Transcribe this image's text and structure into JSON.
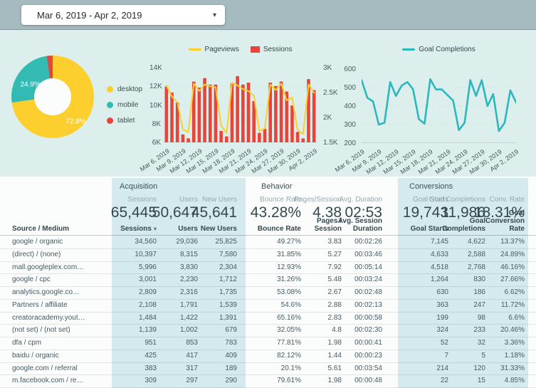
{
  "topbar": {
    "date_range": "Mar 6, 2019 - Apr 2, 2019"
  },
  "icons": {
    "caret_down": "▾",
    "sort_desc": "▾"
  },
  "colors": {
    "topbar_bg": "#A6BBBF",
    "band_bg": "#DCEFEC",
    "panel_bg": "#D5EAEE",
    "desktop": "#FCCF2F",
    "mobile": "#33BBB3",
    "tablet": "#E8443A",
    "pageviews": "#FCCF2F",
    "sessions": "#E8443A",
    "goal": "#2DB6BE"
  },
  "chart_data": [
    {
      "type": "pie",
      "donut": true,
      "legend_position": "right",
      "labels": [
        "desktop",
        "mobile",
        "tablet"
      ],
      "values": [
        72.8,
        24.9,
        2.3
      ],
      "unit": "%",
      "colors": [
        "#FCCF2F",
        "#33BBB3",
        "#E8443A"
      ],
      "shown_labels": [
        "72.8%",
        "24.9%"
      ]
    },
    {
      "type": "combo",
      "x_tick_every": 3,
      "x": [
        "Mar 6, 2019",
        "Mar 7, 2019",
        "Mar 8, 2019",
        "Mar 9, 2019",
        "Mar 10, 2019",
        "Mar 11, 2019",
        "Mar 12, 2019",
        "Mar 13, 2019",
        "Mar 14, 2019",
        "Mar 15, 2019",
        "Mar 16, 2019",
        "Mar 17, 2019",
        "Mar 18, 2019",
        "Mar 19, 2019",
        "Mar 20, 2019",
        "Mar 21, 2019",
        "Mar 22, 2019",
        "Mar 23, 2019",
        "Mar 24, 2019",
        "Mar 25, 2019",
        "Mar 26, 2019",
        "Mar 27, 2019",
        "Mar 28, 2019",
        "Mar 29, 2019",
        "Mar 30, 2019",
        "Mar 31, 2019",
        "Apr 1, 2019",
        "Apr 2, 2019"
      ],
      "left_axis": {
        "min": 6000,
        "max": 14000,
        "ticks": [
          {
            "label": "14K",
            "value": 14000
          },
          {
            "label": "12K",
            "value": 12000
          },
          {
            "label": "10K",
            "value": 10000
          },
          {
            "label": "8K",
            "value": 8000
          },
          {
            "label": "6K",
            "value": 6000
          }
        ]
      },
      "right_axis": {
        "min": 1500,
        "max": 3000,
        "ticks": [
          {
            "label": "3K",
            "value": 3000
          },
          {
            "label": "2.5K",
            "value": 2500
          },
          {
            "label": "2K",
            "value": 2000
          },
          {
            "label": "1.5K",
            "value": 1500
          }
        ]
      },
      "series": [
        {
          "name": "Pageviews",
          "type": "line",
          "axis": "left",
          "color": "#FCCF2F",
          "values": [
            12100,
            10900,
            10300,
            7400,
            7100,
            12300,
            11500,
            12200,
            12000,
            11900,
            7800,
            7000,
            12400,
            12100,
            11700,
            11500,
            11000,
            7200,
            7500,
            12200,
            11600,
            12300,
            10500,
            10800,
            7300,
            6900,
            12200,
            11300
          ]
        },
        {
          "name": "Sessions",
          "type": "bar",
          "axis": "right",
          "color": "#E8443A",
          "values": [
            2620,
            2500,
            2300,
            1660,
            1580,
            2720,
            2600,
            2790,
            2660,
            2660,
            1730,
            1620,
            2680,
            2830,
            2660,
            2700,
            2330,
            1690,
            1770,
            2700,
            2630,
            2720,
            2520,
            2240,
            1710,
            1580,
            2770,
            2550
          ]
        }
      ]
    },
    {
      "type": "line",
      "x_tick_every": 3,
      "x": [
        "Mar 6, 2019",
        "Mar 7, 2019",
        "Mar 8, 2019",
        "Mar 9, 2019",
        "Mar 10, 2019",
        "Mar 11, 2019",
        "Mar 12, 2019",
        "Mar 13, 2019",
        "Mar 14, 2019",
        "Mar 15, 2019",
        "Mar 16, 2019",
        "Mar 17, 2019",
        "Mar 18, 2019",
        "Mar 19, 2019",
        "Mar 20, 2019",
        "Mar 21, 2019",
        "Mar 22, 2019",
        "Mar 23, 2019",
        "Mar 24, 2019",
        "Mar 25, 2019",
        "Mar 26, 2019",
        "Mar 27, 2019",
        "Mar 28, 2019",
        "Mar 29, 2019",
        "Mar 30, 2019",
        "Mar 31, 2019",
        "Apr 1, 2019",
        "Apr 2, 2019"
      ],
      "y_axis": {
        "min": 200,
        "max": 600,
        "ticks": [
          {
            "label": "600",
            "value": 600
          },
          {
            "label": "500",
            "value": 500
          },
          {
            "label": "400",
            "value": 400
          },
          {
            "label": "300",
            "value": 300
          },
          {
            "label": "200",
            "value": 200
          }
        ]
      },
      "series": [
        {
          "name": "Goal Completions",
          "color": "#2DB6BE",
          "values": [
            540,
            445,
            425,
            300,
            310,
            530,
            455,
            510,
            530,
            490,
            330,
            305,
            545,
            490,
            490,
            460,
            430,
            270,
            310,
            540,
            455,
            540,
            400,
            465,
            265,
            310,
            485,
            420
          ]
        }
      ]
    }
  ],
  "scorecards": {
    "acquisition": {
      "title": "Acquisition",
      "metrics": [
        {
          "label": "Sessions",
          "value": "65,445"
        },
        {
          "label": "Users",
          "value": "50,647"
        },
        {
          "label": "New Users",
          "value": "45,641"
        }
      ]
    },
    "behavior": {
      "title": "Behavior",
      "metrics": [
        {
          "label": "Bounce Rate",
          "value": "43.28%"
        },
        {
          "label": "Pages/Session",
          "value": "4.38"
        },
        {
          "label": "Avg. Duration",
          "value": "02:53"
        }
      ]
    },
    "conversions": {
      "title": "Conversions",
      "metrics": [
        {
          "label": "Goal Starts",
          "value": "19,743"
        },
        {
          "label": "Goal Completions",
          "value": "11,986"
        },
        {
          "label": "Conv. Rate",
          "value": "18.31%"
        }
      ]
    }
  },
  "table": {
    "headers": [
      "Source / Medium",
      "Sessions",
      "Users",
      "New Users",
      "Bounce Rate",
      "Pages /\nSession",
      "Avg. Session\nDuration",
      "Goal Starts",
      "Goal\nCompletions",
      "Goal\nConversion\nRate"
    ],
    "sorted_column": "Sessions",
    "rows": [
      [
        "google / organic",
        "34,560",
        "29,036",
        "25,825",
        "49.27%",
        "3.83",
        "00:02:26",
        "7,145",
        "4,622",
        "13.37%"
      ],
      [
        "(direct) / (none)",
        "10,397",
        "8,315",
        "7,580",
        "31.85%",
        "5.27",
        "00:03:46",
        "4,633",
        "2,588",
        "24.89%"
      ],
      [
        "mall.googleplex.com…",
        "5,996",
        "3,830",
        "2,304",
        "12.93%",
        "7.92",
        "00:05:14",
        "4,518",
        "2,768",
        "46.16%"
      ],
      [
        "google / cpc",
        "3,001",
        "2,230",
        "1,712",
        "31.26%",
        "5.48",
        "00:03:24",
        "1,264",
        "830",
        "27.66%"
      ],
      [
        "analytics.google.co…",
        "2,809",
        "2,316",
        "1,735",
        "53.08%",
        "2.67",
        "00:02:48",
        "630",
        "186",
        "6.62%"
      ],
      [
        "Partners / affiliate",
        "2,108",
        "1,791",
        "1,539",
        "54.6%",
        "2.88",
        "00:02:13",
        "363",
        "247",
        "11.72%"
      ],
      [
        "creatoracademy.yout…",
        "1,484",
        "1,422",
        "1,391",
        "65.16%",
        "2.83",
        "00:00:58",
        "199",
        "98",
        "6.6%"
      ],
      [
        "(not set) / (not set)",
        "1,139",
        "1,002",
        "679",
        "32.05%",
        "4.8",
        "00:02:30",
        "324",
        "233",
        "20.46%"
      ],
      [
        "dfa / cpm",
        "951",
        "853",
        "783",
        "77.81%",
        "1.98",
        "00:00:41",
        "52",
        "32",
        "3.36%"
      ],
      [
        "baidu / organic",
        "425",
        "417",
        "409",
        "82.12%",
        "1.44",
        "00:00:23",
        "7",
        "5",
        "1.18%"
      ],
      [
        "google.com / referral",
        "383",
        "317",
        "189",
        "20.1%",
        "5.61",
        "00:03:54",
        "214",
        "120",
        "31.33%"
      ],
      [
        "m.facebook.com / re…",
        "309",
        "297",
        "290",
        "79.61%",
        "1.98",
        "00:00:48",
        "22",
        "15",
        "4.85%"
      ]
    ]
  }
}
